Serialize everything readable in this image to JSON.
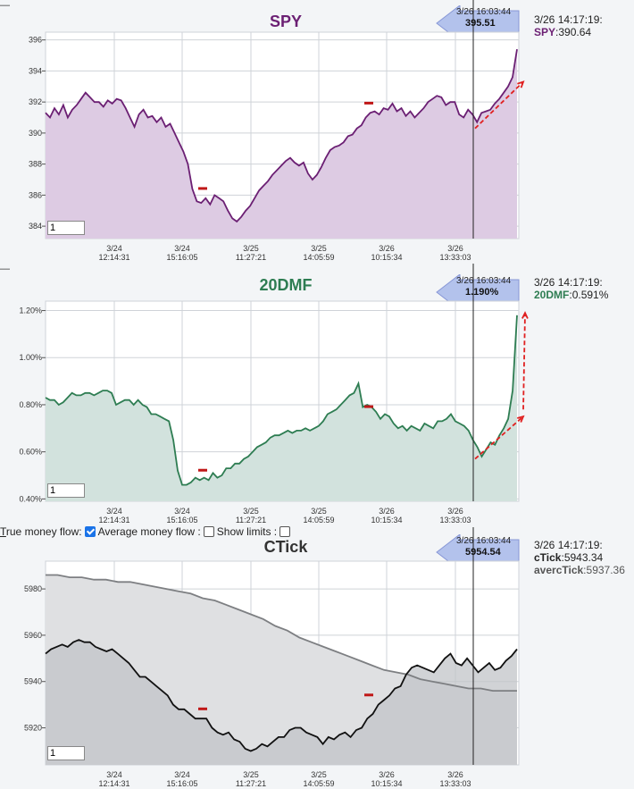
{
  "panels": [
    {
      "title": "SPY",
      "title_color": "#6b1f73",
      "cursor": {
        "date": "3/26 16:03:44",
        "value": "395.51"
      },
      "readout": {
        "date": "3/26 14:17:19:",
        "name": "SPY",
        "value": "390.64",
        "name_color": "#6b1f73"
      },
      "input_value": "1"
    },
    {
      "title": "20DMF",
      "title_color": "#2e7d52",
      "cursor": {
        "date": "3/26 16:03:44",
        "value": "1.190%"
      },
      "readout": {
        "date": "3/26 14:17:19:",
        "name": "20DMF",
        "value": "0.591%",
        "name_color": "#2e7d52"
      },
      "input_value": "1"
    },
    {
      "title": "CTick",
      "title_color": "#333333",
      "cursor": {
        "date": "3/26 16:03:44",
        "value": "5954.54"
      },
      "readout": {
        "date": "3/26 14:17:19:",
        "name": "cTick",
        "value": "5943.34",
        "name_color": "#111111",
        "name2": "avercTick",
        "value2": "5937.36"
      },
      "input_value": "1"
    }
  ],
  "controls": {
    "true_label_u": "T",
    "true_label_rest": "rue money flow:",
    "avg_label": "Average money flow :",
    "limits_label": "Show limits :"
  },
  "chart_data": [
    {
      "type": "area",
      "title": "SPY",
      "ylim": [
        383.2,
        396.5
      ],
      "yticks": [
        384,
        386,
        388,
        390,
        392,
        394,
        396
      ],
      "ytick_labels": [
        "384",
        "386",
        "388",
        "390",
        "392",
        "394",
        "396"
      ],
      "xticks": [
        [
          "3/24",
          "12:14:31"
        ],
        [
          "3/24",
          "15:16:05"
        ],
        [
          "3/25",
          "11:27:21"
        ],
        [
          "3/25",
          "14:05:59"
        ],
        [
          "3/26",
          "10:15:34"
        ],
        [
          "3/26",
          "13:33:03"
        ]
      ],
      "line_color": "#6b1f73",
      "fill_color": "#ddcbe3",
      "series": [
        {
          "values": [
            391.3,
            391.0,
            391.6,
            391.2,
            391.8,
            391.0,
            391.5,
            391.8,
            392.2,
            392.6,
            392.3,
            392.0,
            392.0,
            391.7,
            392.1,
            391.9,
            392.2,
            392.1,
            391.6,
            391.0,
            390.4,
            391.2,
            391.5,
            391.0,
            391.1,
            390.7,
            391.0,
            390.4,
            390.6,
            390.0,
            389.4,
            388.8,
            388.0,
            386.4,
            385.6,
            385.5,
            385.8,
            385.4,
            386.0,
            385.8,
            385.6,
            385.0,
            384.5,
            384.3,
            384.6,
            385.0,
            385.3,
            385.8,
            386.3,
            386.6,
            386.9,
            387.3,
            387.6,
            387.9,
            388.2,
            388.4,
            388.1,
            387.9,
            388.1,
            387.4,
            387.0,
            387.3,
            387.8,
            388.4,
            388.9,
            389.1,
            389.2,
            389.4,
            389.8,
            389.9,
            390.3,
            390.5,
            391.0,
            391.3,
            391.4,
            391.2,
            391.6,
            391.5,
            391.9,
            391.4,
            391.6,
            391.1,
            391.4,
            391.0,
            391.3,
            391.6,
            392.0,
            392.2,
            392.4,
            392.3,
            391.8,
            392.0,
            392.0,
            391.2,
            391.0,
            391.5,
            391.2,
            390.7,
            391.3,
            391.4,
            391.5,
            391.9,
            392.2,
            392.6,
            393.0,
            393.6,
            395.4
          ]
        }
      ],
      "markers": [
        386.4,
        391.9
      ],
      "arrow": {
        "from": 390.3,
        "to": 393.3
      }
    },
    {
      "type": "area",
      "title": "20DMF",
      "ylim": [
        0.39,
        1.24
      ],
      "yticks": [
        0.4,
        0.6,
        0.8,
        1.0,
        1.2
      ],
      "ytick_labels": [
        "0.40%",
        "0.60%",
        "0.80%",
        "1.00%",
        "1.20%"
      ],
      "xticks": [
        [
          "3/24",
          "12:14:31"
        ],
        [
          "3/24",
          "15:16:05"
        ],
        [
          "3/25",
          "11:27:21"
        ],
        [
          "3/25",
          "14:05:59"
        ],
        [
          "3/26",
          "10:15:34"
        ],
        [
          "3/26",
          "13:33:03"
        ]
      ],
      "line_color": "#2e7d52",
      "fill_color": "#d2e2dd",
      "series": [
        {
          "values": [
            0.83,
            0.82,
            0.82,
            0.8,
            0.81,
            0.83,
            0.85,
            0.84,
            0.84,
            0.85,
            0.85,
            0.84,
            0.85,
            0.86,
            0.86,
            0.85,
            0.8,
            0.81,
            0.82,
            0.82,
            0.8,
            0.82,
            0.8,
            0.79,
            0.76,
            0.76,
            0.75,
            0.74,
            0.73,
            0.65,
            0.52,
            0.46,
            0.46,
            0.47,
            0.49,
            0.48,
            0.49,
            0.48,
            0.51,
            0.49,
            0.5,
            0.53,
            0.53,
            0.55,
            0.55,
            0.57,
            0.58,
            0.6,
            0.62,
            0.63,
            0.64,
            0.66,
            0.67,
            0.67,
            0.68,
            0.69,
            0.68,
            0.69,
            0.69,
            0.7,
            0.69,
            0.7,
            0.71,
            0.73,
            0.76,
            0.77,
            0.78,
            0.8,
            0.82,
            0.84,
            0.85,
            0.89,
            0.79,
            0.8,
            0.79,
            0.77,
            0.74,
            0.76,
            0.75,
            0.72,
            0.7,
            0.71,
            0.69,
            0.71,
            0.7,
            0.69,
            0.72,
            0.71,
            0.7,
            0.73,
            0.73,
            0.74,
            0.76,
            0.73,
            0.72,
            0.71,
            0.69,
            0.65,
            0.62,
            0.58,
            0.61,
            0.64,
            0.63,
            0.67,
            0.7,
            0.74,
            0.86,
            1.18
          ]
        }
      ],
      "markers": [
        0.52,
        0.79
      ],
      "arrow": {
        "from": 0.57,
        "to": 0.75
      },
      "arrow2": {
        "from": 0.78,
        "to": 1.19
      }
    },
    {
      "type": "line",
      "title": "CTick",
      "ylim": [
        5904,
        5992
      ],
      "yticks": [
        5920,
        5940,
        5960,
        5980
      ],
      "ytick_labels": [
        "5920",
        "5940",
        "5960",
        "5980"
      ],
      "xticks": [
        [
          "3/24",
          "12:14:31"
        ],
        [
          "3/24",
          "15:16:05"
        ],
        [
          "3/25",
          "11:27:21"
        ],
        [
          "3/25",
          "14:05:59"
        ],
        [
          "3/26",
          "10:15:34"
        ],
        [
          "3/26",
          "13:33:03"
        ]
      ],
      "series": [
        {
          "name": "cTick",
          "color": "#111111",
          "fill_color": "#c2c4c8",
          "values": [
            5952,
            5954,
            5955,
            5956,
            5955,
            5957,
            5958,
            5957,
            5957,
            5955,
            5954,
            5953,
            5954,
            5952,
            5950,
            5948,
            5945,
            5942,
            5942,
            5940,
            5938,
            5936,
            5934,
            5930,
            5928,
            5928,
            5926,
            5924,
            5924,
            5924,
            5920,
            5918,
            5917,
            5918,
            5915,
            5914,
            5911,
            5910,
            5911,
            5913,
            5912,
            5914,
            5916,
            5916,
            5919,
            5920,
            5920,
            5918,
            5917,
            5916,
            5913,
            5916,
            5915,
            5917,
            5918,
            5916,
            5919,
            5920,
            5924,
            5926,
            5930,
            5932,
            5934,
            5937,
            5938,
            5943,
            5946,
            5947,
            5946,
            5945,
            5944,
            5947,
            5950,
            5952,
            5948,
            5947,
            5950,
            5947,
            5944,
            5946,
            5948,
            5945,
            5946,
            5949,
            5951,
            5954
          ]
        },
        {
          "name": "avercTick",
          "color": "#7d7f82",
          "fill_color": "#dfe0e2",
          "values": [
            5986,
            5986,
            5985,
            5985,
            5984,
            5984,
            5983,
            5983,
            5982,
            5981,
            5980,
            5979,
            5978,
            5976,
            5975,
            5973,
            5971,
            5969,
            5967,
            5964,
            5962,
            5959,
            5957,
            5955,
            5953,
            5951,
            5949,
            5947,
            5945,
            5944,
            5943,
            5941,
            5940,
            5939,
            5938,
            5937,
            5937,
            5936,
            5936,
            5936
          ]
        }
      ],
      "markers": [
        5928,
        5934
      ]
    }
  ]
}
